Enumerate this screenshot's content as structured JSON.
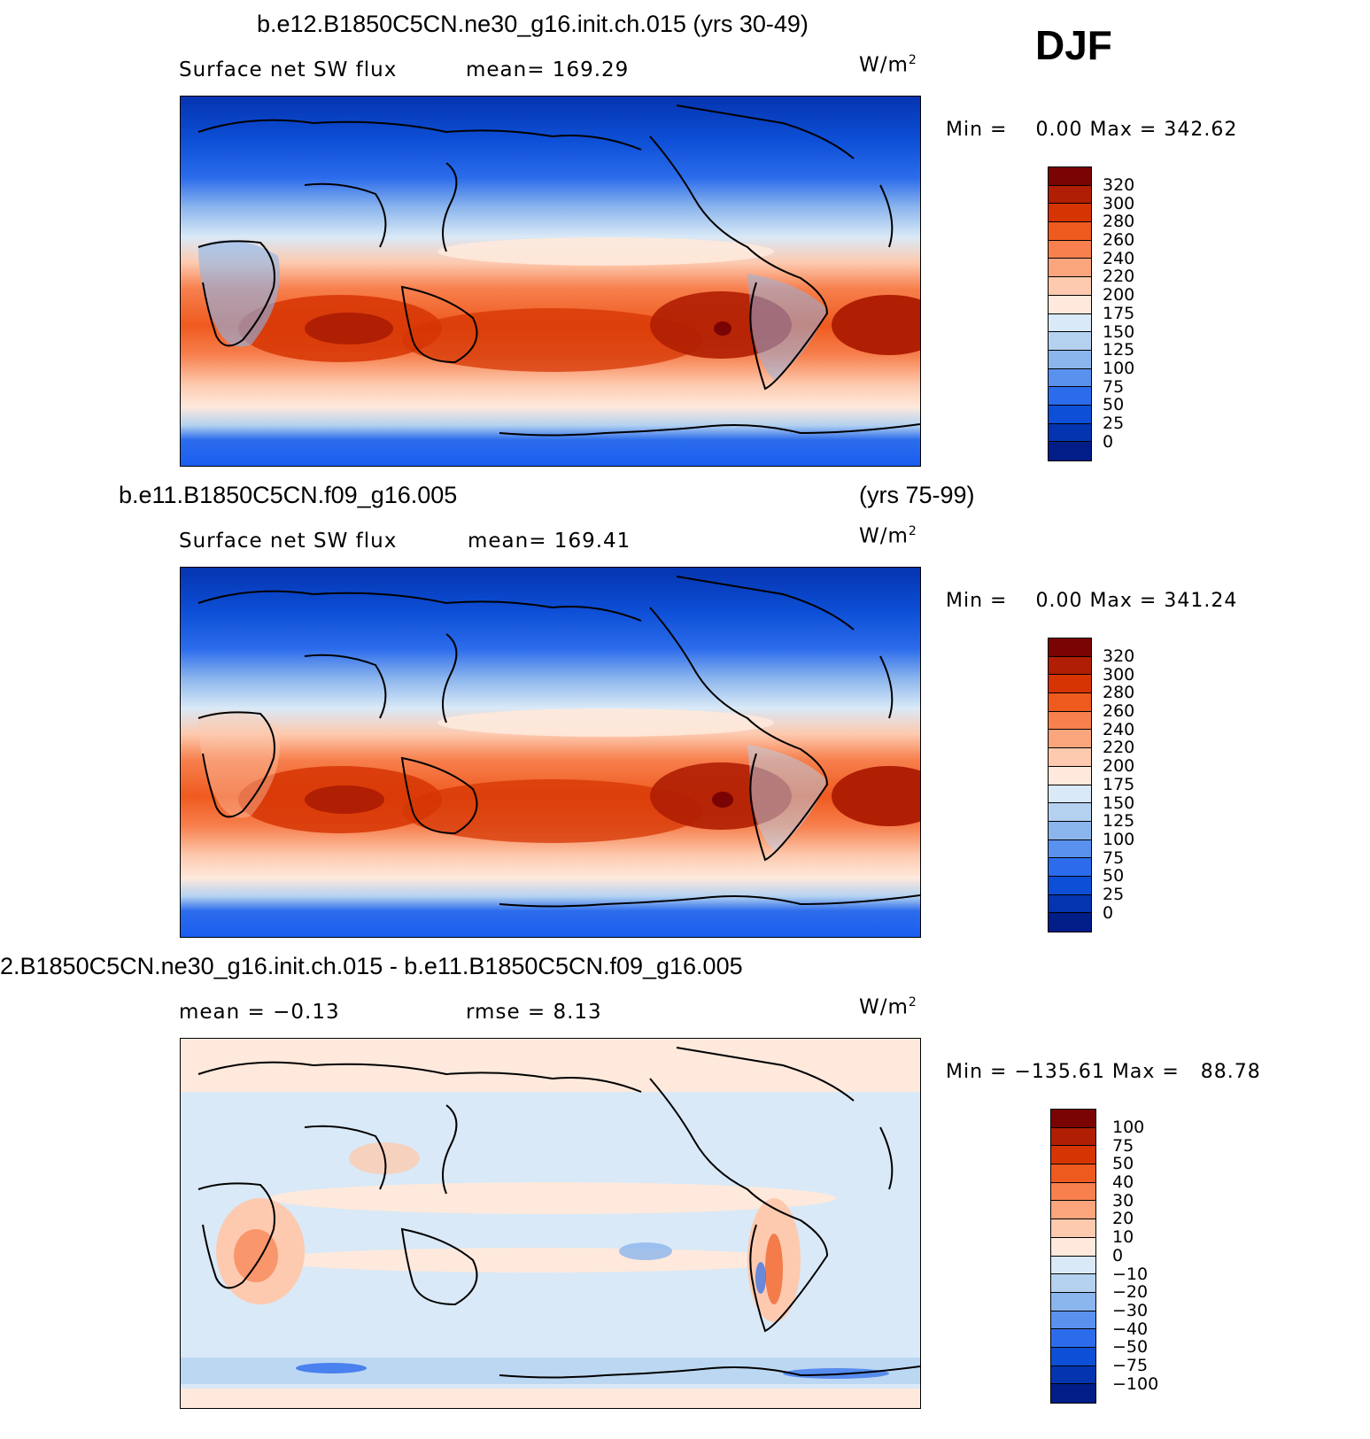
{
  "season": "DJF",
  "panels": [
    {
      "id": "case",
      "title_left": "b.e12.B1850C5CN.ne30_g16.init.ch.015 (yrs 30-49)",
      "title_right": "",
      "field": "Surface net SW flux",
      "stat1": "mean=  169.29",
      "stat2": "",
      "units": "W/m",
      "units_sup": "2",
      "min_label": "Min  =",
      "min_value": "0.00",
      "max_label": "Max  =",
      "max_value": "342.62",
      "levels": [
        "320",
        "300",
        "280",
        "260",
        "240",
        "220",
        "200",
        "175",
        "150",
        "125",
        "100",
        "75",
        "50",
        "25",
        "0"
      ],
      "colors": [
        "#7a0403",
        "#b01e03",
        "#d63503",
        "#ef5a1f",
        "#f7804e",
        "#fba57d",
        "#fdcaaf",
        "#fee9dc",
        "#d9e9f7",
        "#b4d2f0",
        "#8bb5ed",
        "#5a91ef",
        "#2c6cec",
        "#0d4fd6",
        "#0534b0",
        "#011d87"
      ]
    },
    {
      "id": "control",
      "title_left": "b.e11.B1850C5CN.f09_g16.005",
      "title_right": "(yrs 75-99)",
      "field": "Surface net SW flux",
      "stat1": "mean=  169.41",
      "stat2": "",
      "units": "W/m",
      "units_sup": "2",
      "min_label": "Min  =",
      "min_value": "0.00",
      "max_label": "Max  =",
      "max_value": "341.24",
      "levels": [
        "320",
        "300",
        "280",
        "260",
        "240",
        "220",
        "200",
        "175",
        "150",
        "125",
        "100",
        "75",
        "50",
        "25",
        "0"
      ],
      "colors": [
        "#7a0403",
        "#b01e03",
        "#d63503",
        "#ef5a1f",
        "#f7804e",
        "#fba57d",
        "#fdcaaf",
        "#fee9dc",
        "#d9e9f7",
        "#b4d2f0",
        "#8bb5ed",
        "#5a91ef",
        "#2c6cec",
        "#0d4fd6",
        "#0534b0",
        "#011d87"
      ]
    },
    {
      "id": "difference",
      "title_left": "2.B1850C5CN.ne30_g16.init.ch.015 - b.e11.B1850C5CN.f09_g16.005",
      "title_right": "",
      "field": "",
      "stat1": "mean =   −0.13",
      "stat2": "rmse =    8.13",
      "units": "W/m",
      "units_sup": "2",
      "min_label": "Min  =",
      "min_value": "−135.61",
      "max_label": "Max  =",
      "max_value": "88.78",
      "levels": [
        "100",
        "75",
        "50",
        "40",
        "30",
        "20",
        "10",
        "0",
        "−10",
        "−20",
        "−30",
        "−40",
        "−50",
        "−75",
        "−100"
      ],
      "colors": [
        "#7a0403",
        "#b01e03",
        "#d63503",
        "#ef5a1f",
        "#f7804e",
        "#fba57d",
        "#fdcaaf",
        "#fee9dc",
        "#d9e9f7",
        "#b4d2f0",
        "#8bb5ed",
        "#5a91ef",
        "#2c6cec",
        "#0d4fd6",
        "#0534b0",
        "#011d87"
      ]
    }
  ],
  "chart_data": [
    {
      "type": "heatmap",
      "title": "b.e12.B1850C5CN.ne30_g16.init.ch.015 (yrs 30-49)",
      "subtitle": "Surface net SW flux",
      "mean": 169.29,
      "min": 0.0,
      "max": 342.62,
      "units": "W/m2",
      "colorbar_levels": [
        0,
        25,
        50,
        75,
        100,
        125,
        150,
        175,
        200,
        220,
        240,
        260,
        280,
        300,
        320
      ]
    },
    {
      "type": "heatmap",
      "title": "b.e11.B1850C5CN.f09_g16.005 (yrs 75-99)",
      "subtitle": "Surface net SW flux",
      "mean": 169.41,
      "min": 0.0,
      "max": 341.24,
      "units": "W/m2",
      "colorbar_levels": [
        0,
        25,
        50,
        75,
        100,
        125,
        150,
        175,
        200,
        220,
        240,
        260,
        280,
        300,
        320
      ]
    },
    {
      "type": "heatmap",
      "title": "2.B1850C5CN.ne30_g16.init.ch.015 - b.e11.B1850C5CN.f09_g16.005",
      "mean": -0.13,
      "rmse": 8.13,
      "min": -135.61,
      "max": 88.78,
      "units": "W/m2",
      "colorbar_levels": [
        -100,
        -75,
        -50,
        -40,
        -30,
        -20,
        -10,
        0,
        10,
        20,
        30,
        40,
        50,
        75,
        100
      ]
    }
  ]
}
